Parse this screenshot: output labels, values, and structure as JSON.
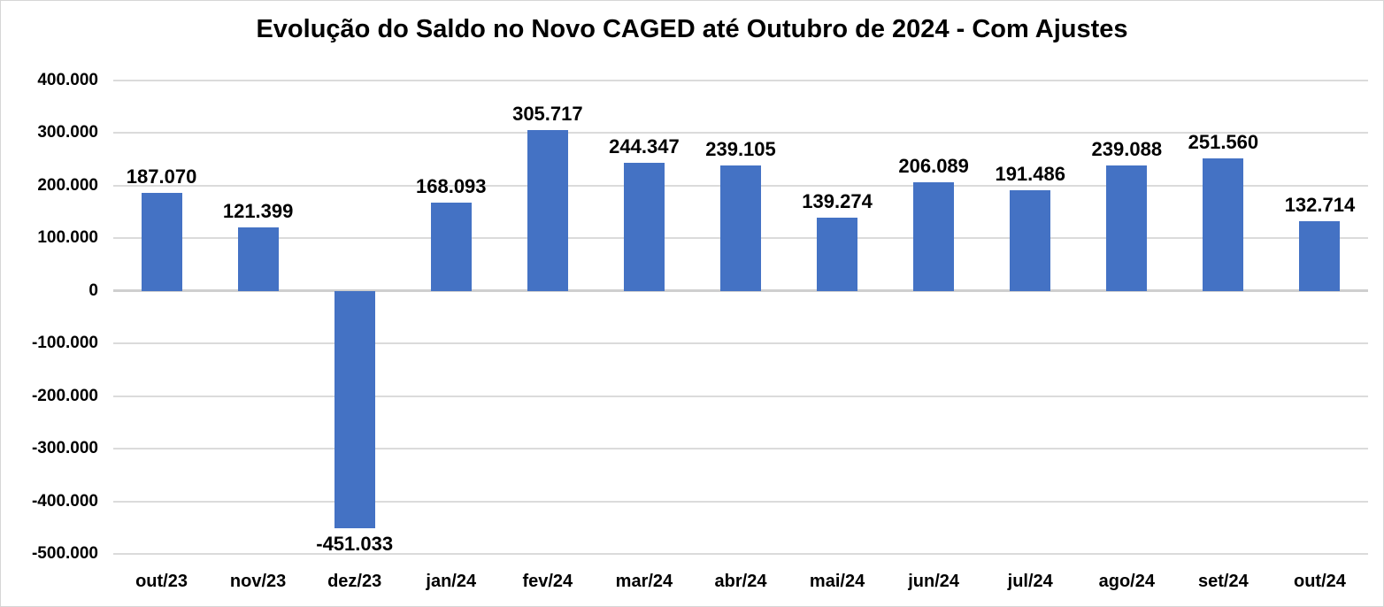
{
  "chart_data": {
    "type": "bar",
    "title": "Evolução do Saldo no Novo CAGED até Outubro de 2024 - Com Ajustes",
    "categories": [
      "out/23",
      "nov/23",
      "dez/23",
      "jan/24",
      "fev/24",
      "mar/24",
      "abr/24",
      "mai/24",
      "jun/24",
      "jul/24",
      "ago/24",
      "set/24",
      "out/24"
    ],
    "values": [
      187070,
      121399,
      -451033,
      168093,
      305717,
      244347,
      239105,
      139274,
      206089,
      191486,
      239088,
      251560,
      132714
    ],
    "data_labels": [
      "187.070",
      "121.399",
      "-451.033",
      "168.093",
      "305.717",
      "244.347",
      "239.105",
      "139.274",
      "206.089",
      "191.486",
      "239.088",
      "251.560",
      "132.714"
    ],
    "xlabel": "",
    "ylabel": "",
    "ylim": [
      -500000,
      400000
    ],
    "ytick_step": 100000,
    "yticks": [
      {
        "value": 400000,
        "label": "400.000"
      },
      {
        "value": 300000,
        "label": "300.000"
      },
      {
        "value": 200000,
        "label": "200.000"
      },
      {
        "value": 100000,
        "label": "100.000"
      },
      {
        "value": 0,
        "label": "0"
      },
      {
        "value": -100000,
        "label": "-100.000"
      },
      {
        "value": -200000,
        "label": "-200.000"
      },
      {
        "value": -300000,
        "label": "-300.000"
      },
      {
        "value": -400000,
        "label": "-400.000"
      },
      {
        "value": -500000,
        "label": "-500.000"
      }
    ],
    "grid": true,
    "legend_position": "none",
    "data_label_position": "outside-end",
    "colors": {
      "bar": "#4472C4",
      "gridline": "#DBDBDB",
      "zero_axis_line": "#CFCFCF",
      "text": "#000000",
      "background": "#FFFFFF",
      "frame_border": "#D6D6D6"
    }
  }
}
